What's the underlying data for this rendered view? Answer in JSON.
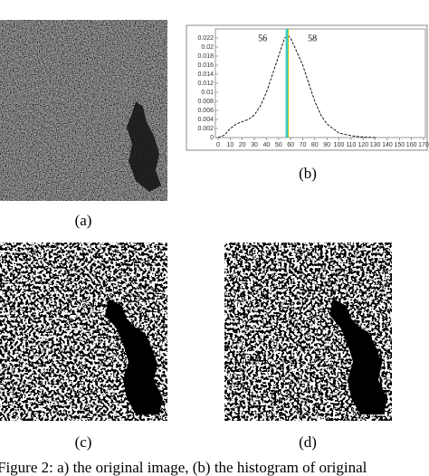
{
  "figure": {
    "panels": [
      {
        "label": "(a)"
      },
      {
        "label": "(b)"
      },
      {
        "label": "(c)"
      },
      {
        "label": "(d)"
      }
    ],
    "caption": "Figure 2: a) the original image, (b) the histogram of original"
  },
  "chart_data": {
    "type": "line",
    "x": [
      0,
      5,
      10,
      15,
      20,
      25,
      30,
      35,
      40,
      45,
      50,
      55,
      58,
      60,
      65,
      70,
      75,
      80,
      85,
      90,
      95,
      100,
      110,
      120,
      130
    ],
    "values": [
      0,
      0.0005,
      0.002,
      0.003,
      0.0035,
      0.004,
      0.005,
      0.007,
      0.01,
      0.014,
      0.018,
      0.022,
      0.0225,
      0.022,
      0.019,
      0.016,
      0.012,
      0.008,
      0.005,
      0.003,
      0.002,
      0.001,
      0.0004,
      0.0001,
      0
    ],
    "color": "#000000",
    "line_style": "dashed",
    "xlim": [
      0,
      170
    ],
    "xticks": [
      0,
      10,
      20,
      30,
      40,
      50,
      60,
      70,
      80,
      90,
      100,
      110,
      120,
      130,
      140,
      150,
      160,
      170
    ],
    "ylim": [
      0,
      0.024
    ],
    "yticks": [
      0,
      0.002,
      0.004,
      0.006,
      0.008,
      0.01,
      0.012,
      0.014,
      0.016,
      0.018,
      0.02,
      0.022
    ],
    "vline": {
      "x": 57,
      "color": "#33cccc"
    },
    "annotations": [
      "56",
      "58"
    ]
  }
}
